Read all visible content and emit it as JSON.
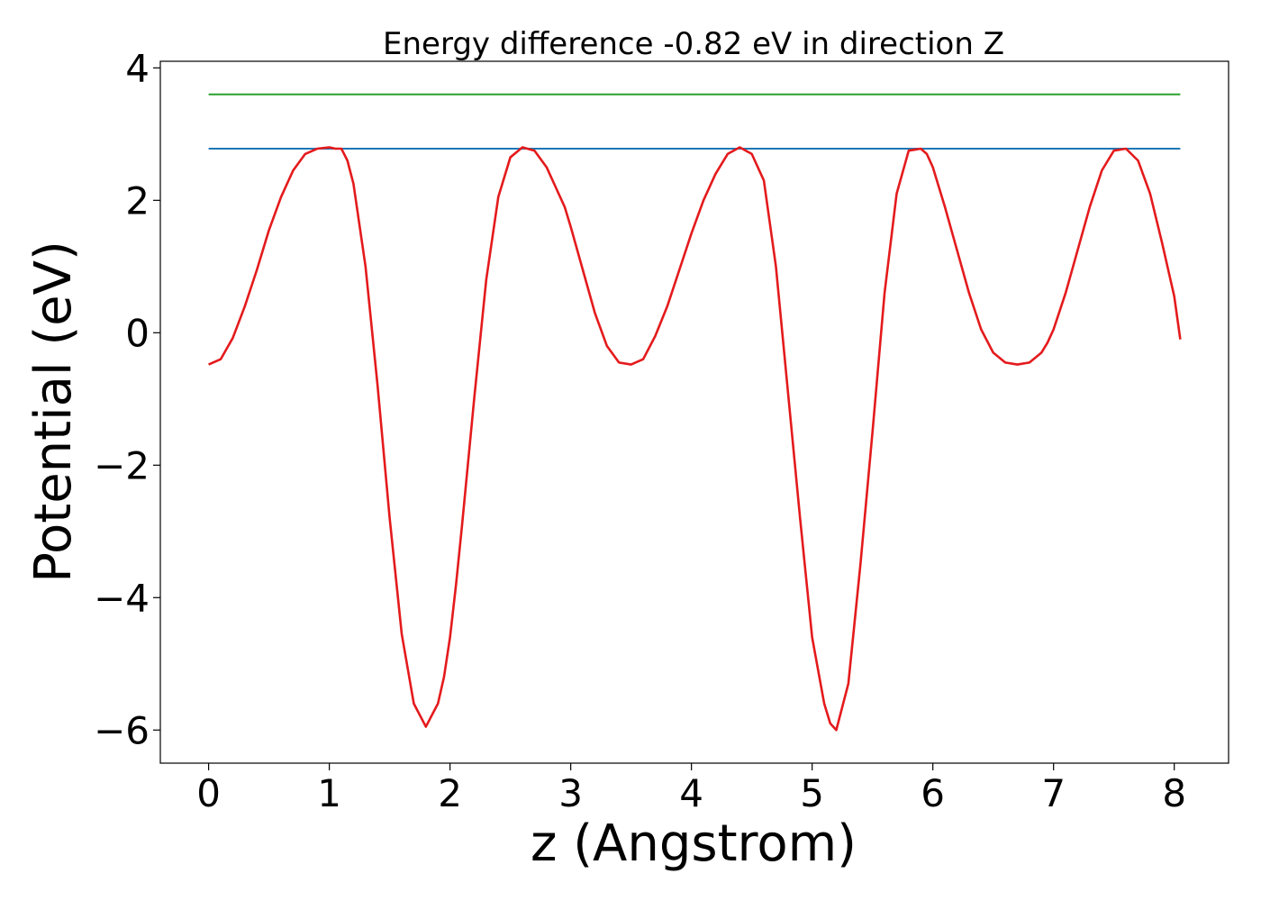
{
  "chart_data": {
    "type": "line",
    "title": "Energy difference -0.82 eV in direction Z",
    "xlabel": "z (Angstrom)",
    "ylabel": "Potential (eV)",
    "xlim": [
      -0.4,
      8.45
    ],
    "ylim": [
      -6.5,
      4.1
    ],
    "xticks": [
      0,
      1,
      2,
      3,
      4,
      5,
      6,
      7,
      8
    ],
    "xtick_labels": [
      "0",
      "1",
      "2",
      "3",
      "4",
      "5",
      "6",
      "7",
      "8"
    ],
    "yticks": [
      -6,
      -4,
      -2,
      0,
      2,
      4
    ],
    "ytick_labels": [
      "−6",
      "−4",
      "−2",
      "0",
      "2",
      "4"
    ],
    "grid": false,
    "series": [
      {
        "color": "#2ca02c",
        "x": [
          0,
          8.05
        ],
        "y": [
          3.6,
          3.6
        ]
      },
      {
        "color": "#1f77b4",
        "x": [
          0,
          8.05
        ],
        "y": [
          2.78,
          2.78
        ]
      },
      {
        "color": "#e41a1c",
        "x": [
          0,
          0.1,
          0.2,
          0.3,
          0.4,
          0.5,
          0.6,
          0.7,
          0.8,
          0.9,
          1.0,
          1.05,
          1.1,
          1.15,
          1.2,
          1.3,
          1.4,
          1.5,
          1.6,
          1.7,
          1.8,
          1.9,
          1.95,
          2.0,
          2.05,
          2.1,
          2.2,
          2.3,
          2.4,
          2.5,
          2.6,
          2.7,
          2.8,
          2.9,
          2.95,
          3.0,
          3.1,
          3.2,
          3.3,
          3.4,
          3.5,
          3.6,
          3.7,
          3.8,
          3.9,
          4.0,
          4.05,
          4.1,
          4.2,
          4.3,
          4.4,
          4.5,
          4.6,
          4.7,
          4.8,
          4.9,
          5.0,
          5.1,
          5.15,
          5.2,
          5.3,
          5.4,
          5.5,
          5.6,
          5.7,
          5.8,
          5.9,
          5.95,
          6.0,
          6.05,
          6.1,
          6.2,
          6.3,
          6.4,
          6.5,
          6.6,
          6.7,
          6.8,
          6.9,
          6.95,
          7.0,
          7.1,
          7.2,
          7.3,
          7.4,
          7.5,
          7.6,
          7.7,
          7.8,
          7.9,
          8.0,
          8.05
        ],
        "y": [
          -0.48,
          -0.4,
          -0.08,
          0.4,
          0.95,
          1.55,
          2.05,
          2.45,
          2.7,
          2.78,
          2.8,
          2.78,
          2.78,
          2.6,
          2.25,
          1.0,
          -0.8,
          -2.8,
          -4.55,
          -5.6,
          -5.95,
          -5.6,
          -5.2,
          -4.6,
          -3.8,
          -2.9,
          -1.0,
          0.8,
          2.05,
          2.65,
          2.8,
          2.75,
          2.5,
          2.1,
          1.9,
          1.6,
          0.95,
          0.3,
          -0.2,
          -0.45,
          -0.48,
          -0.4,
          -0.05,
          0.4,
          0.95,
          1.5,
          1.75,
          2.0,
          2.4,
          2.7,
          2.8,
          2.7,
          2.3,
          1.0,
          -0.9,
          -2.8,
          -4.6,
          -5.6,
          -5.9,
          -6.0,
          -5.3,
          -3.5,
          -1.5,
          0.6,
          2.1,
          2.75,
          2.78,
          2.7,
          2.5,
          2.2,
          1.9,
          1.25,
          0.6,
          0.05,
          -0.3,
          -0.45,
          -0.48,
          -0.45,
          -0.3,
          -0.15,
          0.05,
          0.6,
          1.25,
          1.9,
          2.45,
          2.75,
          2.78,
          2.6,
          2.1,
          1.35,
          0.55,
          -0.1
        ]
      }
    ]
  }
}
